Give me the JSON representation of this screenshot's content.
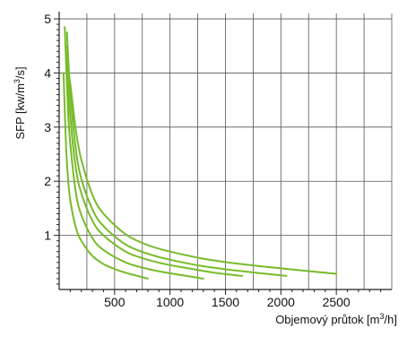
{
  "chart_data": {
    "type": "line",
    "xlabel_main": "Objemový průtok [m",
    "xlabel_sup": "3",
    "xlabel_end": "/h]",
    "ylabel_main": "SFP [kw/m",
    "ylabel_sup": "3",
    "ylabel_end": "/s]",
    "xlim": [
      0,
      3000
    ],
    "ylim": [
      0,
      5.1
    ],
    "x_ticks": [
      500,
      1000,
      1500,
      2000,
      2500
    ],
    "x_tick_labels": [
      "500",
      "1000",
      "1500",
      "2000",
      "2500"
    ],
    "x_minor_step": 100,
    "y_ticks": [
      1,
      2,
      3,
      4,
      5
    ],
    "y_tick_labels": [
      "1",
      "2",
      "3",
      "4",
      "5"
    ],
    "grid": true,
    "line_color": "#77bb2a",
    "series": [
      {
        "x": [
          40,
          60,
          80,
          100,
          150,
          200,
          300,
          400,
          500,
          600,
          800
        ],
        "y": [
          4.0,
          2.75,
          2.05,
          1.65,
          1.15,
          0.9,
          0.62,
          0.47,
          0.38,
          0.31,
          0.2
        ]
      },
      {
        "x": [
          50,
          80,
          100,
          150,
          200,
          300,
          400,
          600,
          800,
          1000,
          1300
        ],
        "y": [
          4.85,
          3.3,
          2.7,
          1.8,
          1.38,
          0.95,
          0.73,
          0.5,
          0.38,
          0.3,
          0.2
        ]
      },
      {
        "x": [
          60,
          100,
          150,
          200,
          300,
          400,
          600,
          800,
          1000,
          1200,
          1400,
          1650
        ],
        "y": [
          4.5,
          3.2,
          2.25,
          1.78,
          1.27,
          1.0,
          0.7,
          0.55,
          0.45,
          0.38,
          0.31,
          0.25
        ]
      },
      {
        "x": [
          70,
          100,
          150,
          200,
          300,
          400,
          600,
          800,
          1000,
          1300,
          1600,
          2050
        ],
        "y": [
          4.75,
          3.65,
          2.6,
          2.05,
          1.48,
          1.17,
          0.83,
          0.66,
          0.55,
          0.43,
          0.35,
          0.25
        ]
      },
      {
        "x": [
          80,
          100,
          150,
          200,
          300,
          400,
          600,
          800,
          1000,
          1300,
          1600,
          2000,
          2500
        ],
        "y": [
          4.0,
          3.8,
          2.95,
          2.4,
          1.75,
          1.4,
          1.02,
          0.82,
          0.7,
          0.57,
          0.48,
          0.39,
          0.29
        ]
      }
    ]
  }
}
